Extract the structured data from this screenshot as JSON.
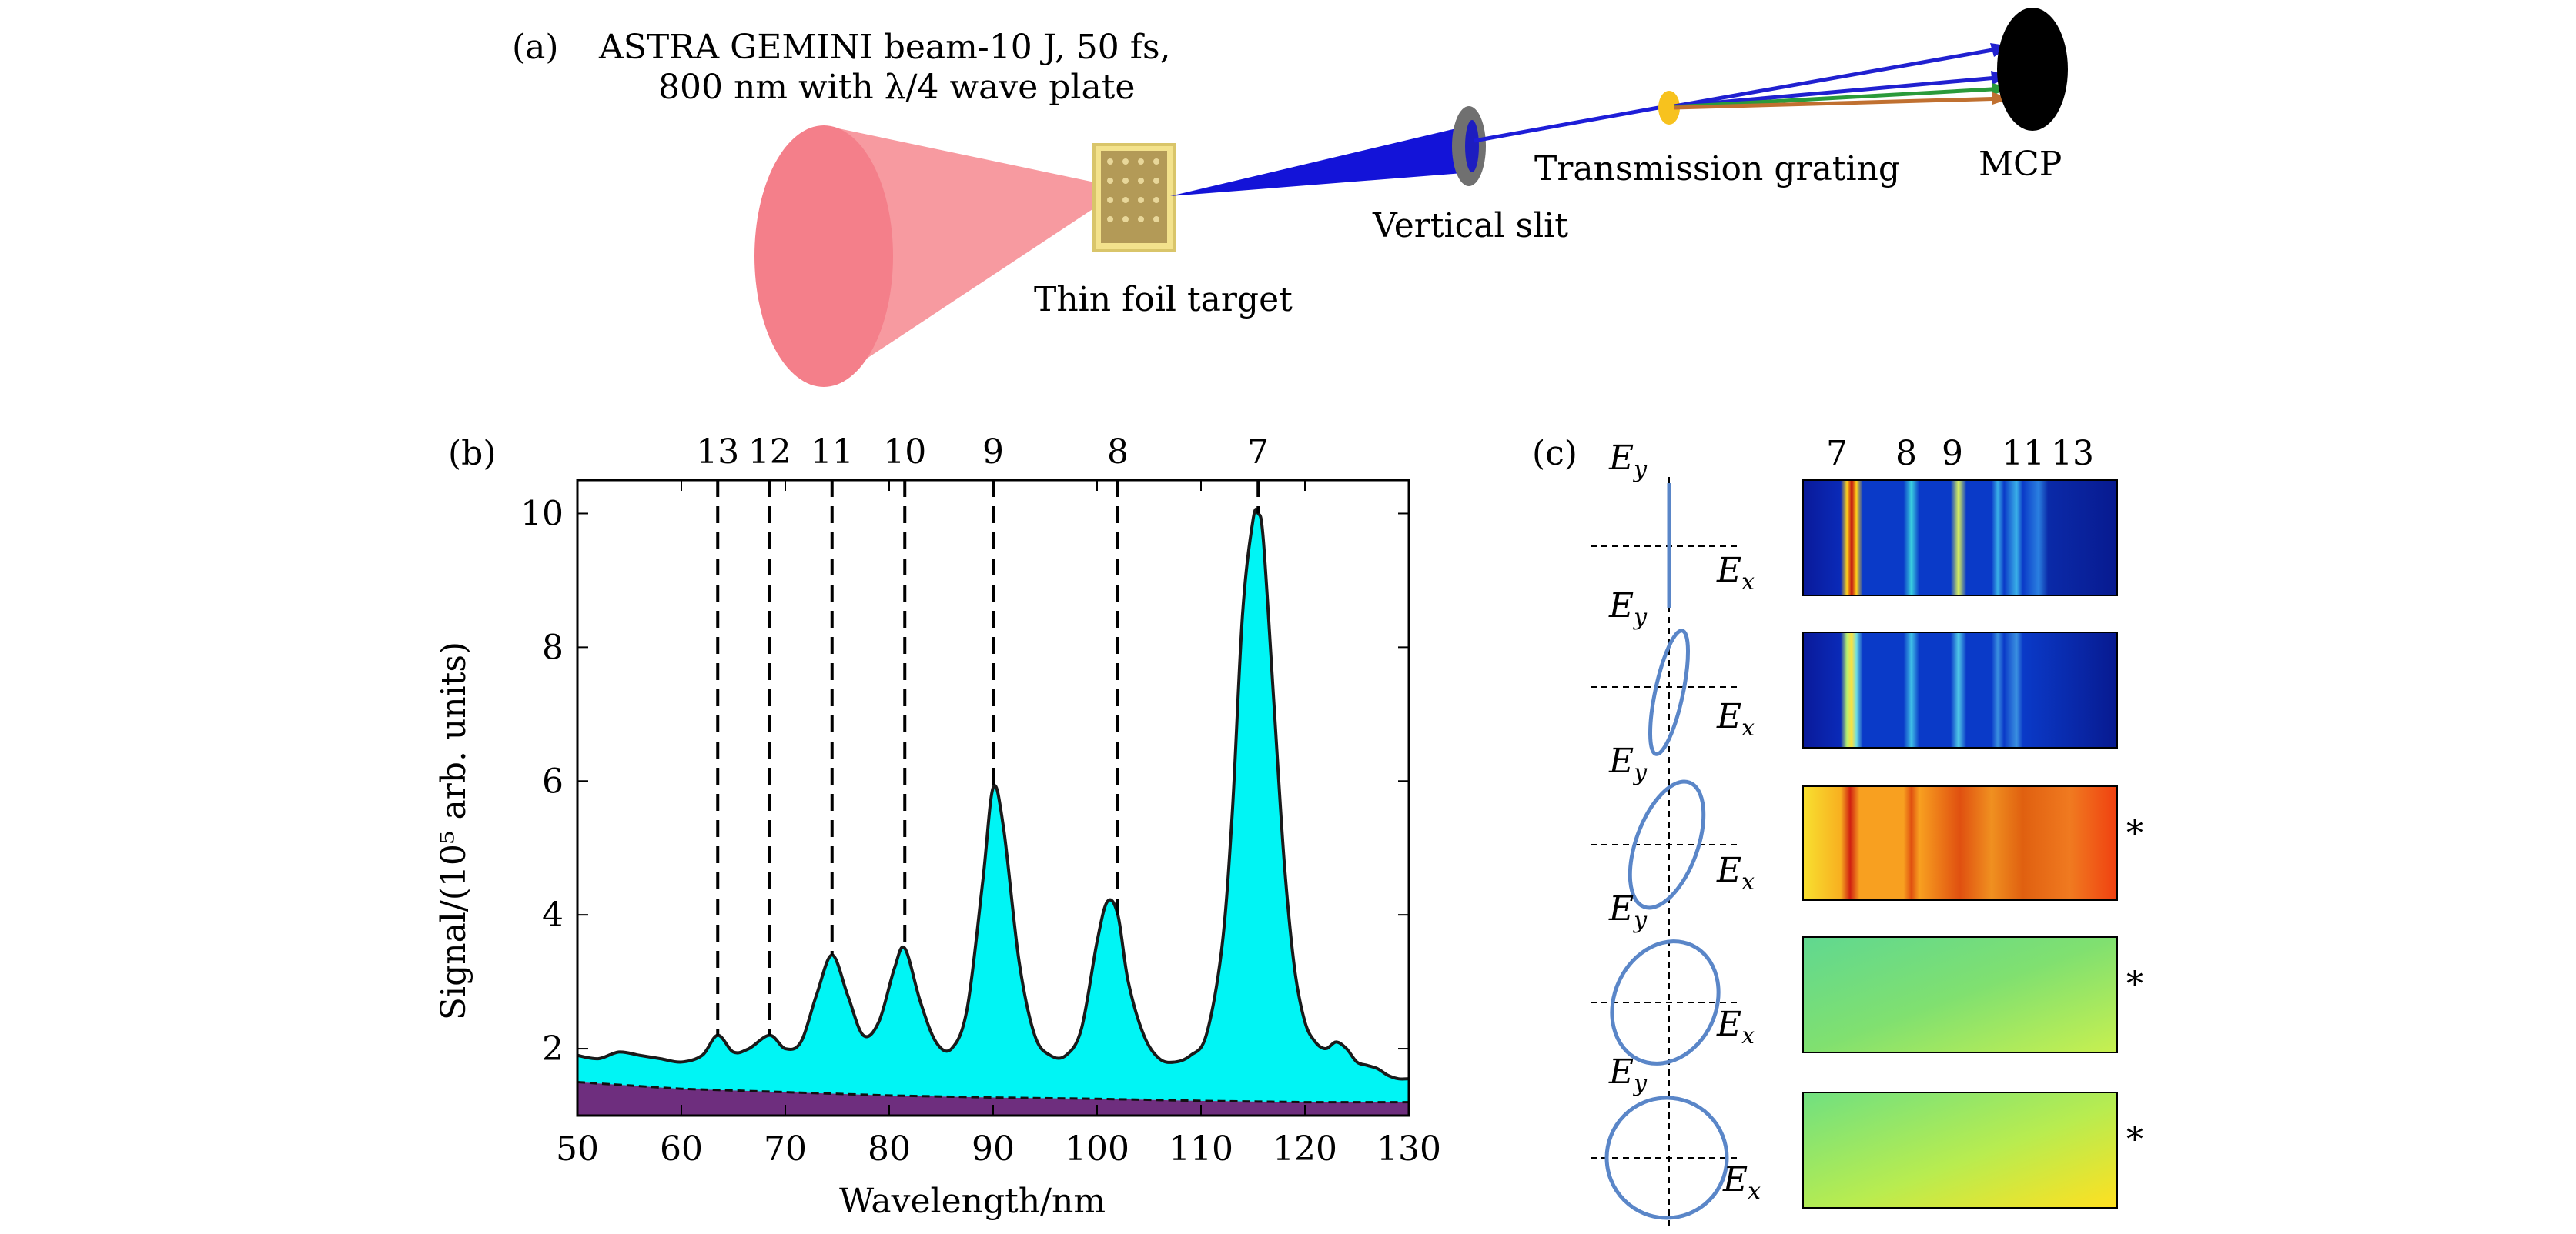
{
  "panel_a": {
    "label": "(a)",
    "caption_line1": "ASTRA GEMINI beam-10 J, 50 fs,",
    "caption_line2": "800 nm with λ/4 wave plate",
    "target_label": "Thin foil target",
    "slit_label": "Vertical slit",
    "grating_label": "Transmission grating",
    "detector_label": "MCP"
  },
  "panel_b": {
    "label": "(b)"
  },
  "panel_c": {
    "label": "(c)",
    "ey": "E",
    "ey_sub": "y",
    "ex": "E",
    "ex_sub": "x",
    "star": "*",
    "harmonic_labels": [
      "7",
      "8",
      "9",
      "11",
      "13"
    ]
  },
  "chart_data": {
    "type": "area",
    "title": "",
    "xlabel": "Wavelength/nm",
    "ylabel": "Signal/(10⁵ arb. units)",
    "xlim": [
      50,
      130
    ],
    "ylim": [
      1.0,
      10.5
    ],
    "xticks": [
      50,
      60,
      70,
      80,
      90,
      100,
      110,
      120,
      130
    ],
    "yticks": [
      2,
      4,
      6,
      8,
      10
    ],
    "harmonics": [
      {
        "order": "13",
        "wavelength": 63.5
      },
      {
        "order": "12",
        "wavelength": 68.5
      },
      {
        "order": "11",
        "wavelength": 74.5
      },
      {
        "order": "10",
        "wavelength": 81.5
      },
      {
        "order": "9",
        "wavelength": 90.0
      },
      {
        "order": "8",
        "wavelength": 102.0
      },
      {
        "order": "7",
        "wavelength": 115.5
      }
    ],
    "series": [
      {
        "name": "signal",
        "x": [
          50,
          52,
          54,
          56,
          58,
          60,
          62,
          63.5,
          65,
          66.5,
          68.5,
          70,
          71.5,
          73,
          74.5,
          76,
          77.5,
          79,
          80.5,
          81.5,
          83,
          84.5,
          86,
          87.5,
          89,
          90,
          91,
          92.5,
          94,
          95.5,
          97,
          98.5,
          100,
          101,
          102,
          103,
          104.5,
          106,
          107.5,
          109,
          110.5,
          112,
          113,
          114,
          115,
          115.5,
          116,
          117,
          118,
          119,
          120,
          121,
          122,
          123,
          124,
          125,
          126,
          127,
          128,
          129,
          130
        ],
        "y": [
          1.9,
          1.85,
          1.95,
          1.9,
          1.85,
          1.8,
          1.9,
          2.2,
          1.95,
          2.0,
          2.2,
          2.0,
          2.1,
          2.8,
          3.4,
          2.8,
          2.2,
          2.4,
          3.2,
          3.5,
          2.7,
          2.1,
          2.0,
          2.6,
          4.5,
          5.9,
          5.3,
          3.3,
          2.2,
          1.9,
          1.9,
          2.3,
          3.6,
          4.2,
          4.0,
          3.0,
          2.2,
          1.85,
          1.8,
          1.9,
          2.2,
          3.5,
          5.5,
          8.5,
          9.9,
          10.0,
          9.6,
          7.2,
          4.8,
          3.2,
          2.4,
          2.1,
          2.0,
          2.1,
          2.0,
          1.8,
          1.75,
          1.7,
          1.6,
          1.55,
          1.55
        ]
      },
      {
        "name": "background",
        "x": [
          50,
          60,
          70,
          80,
          90,
          100,
          110,
          120,
          130
        ],
        "y": [
          1.5,
          1.4,
          1.35,
          1.3,
          1.27,
          1.25,
          1.22,
          1.2,
          1.2
        ]
      }
    ]
  }
}
